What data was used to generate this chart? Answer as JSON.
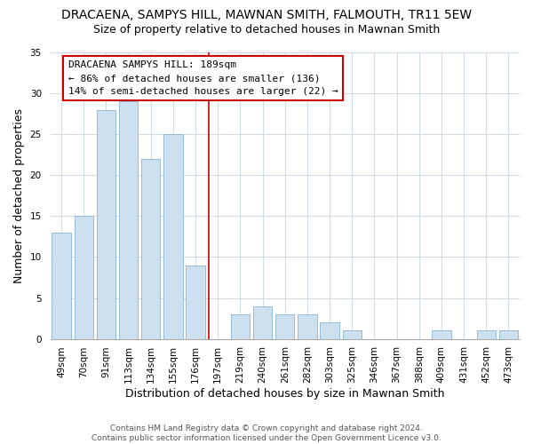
{
  "title": "DRACAENA, SAMPYS HILL, MAWNAN SMITH, FALMOUTH, TR11 5EW",
  "subtitle": "Size of property relative to detached houses in Mawnan Smith",
  "xlabel": "Distribution of detached houses by size in Mawnan Smith",
  "ylabel": "Number of detached properties",
  "categories": [
    "49sqm",
    "70sqm",
    "91sqm",
    "113sqm",
    "134sqm",
    "155sqm",
    "176sqm",
    "197sqm",
    "219sqm",
    "240sqm",
    "261sqm",
    "282sqm",
    "303sqm",
    "325sqm",
    "346sqm",
    "367sqm",
    "388sqm",
    "409sqm",
    "431sqm",
    "452sqm",
    "473sqm"
  ],
  "values": [
    13,
    15,
    28,
    29,
    22,
    25,
    9,
    0,
    3,
    4,
    3,
    3,
    2,
    1,
    0,
    0,
    0,
    1,
    0,
    1,
    1
  ],
  "bar_color": "#cce0f0",
  "bar_edge_color": "#8ab4d4",
  "vline_color": "#cc0000",
  "annotation_title": "DRACAENA SAMPYS HILL: 189sqm",
  "annotation_line1": "← 86% of detached houses are smaller (136)",
  "annotation_line2": "14% of semi-detached houses are larger (22) →",
  "ylim": [
    0,
    35
  ],
  "yticks": [
    0,
    5,
    10,
    15,
    20,
    25,
    30,
    35
  ],
  "footer1": "Contains HM Land Registry data © Crown copyright and database right 2024.",
  "footer2": "Contains public sector information licensed under the Open Government Licence v3.0.",
  "title_fontsize": 10,
  "subtitle_fontsize": 9,
  "axis_label_fontsize": 9,
  "annotation_fontsize": 8,
  "tick_fontsize": 7.5,
  "footer_fontsize": 6.5,
  "background_color": "#ffffff",
  "grid_color": "#d0dce8"
}
